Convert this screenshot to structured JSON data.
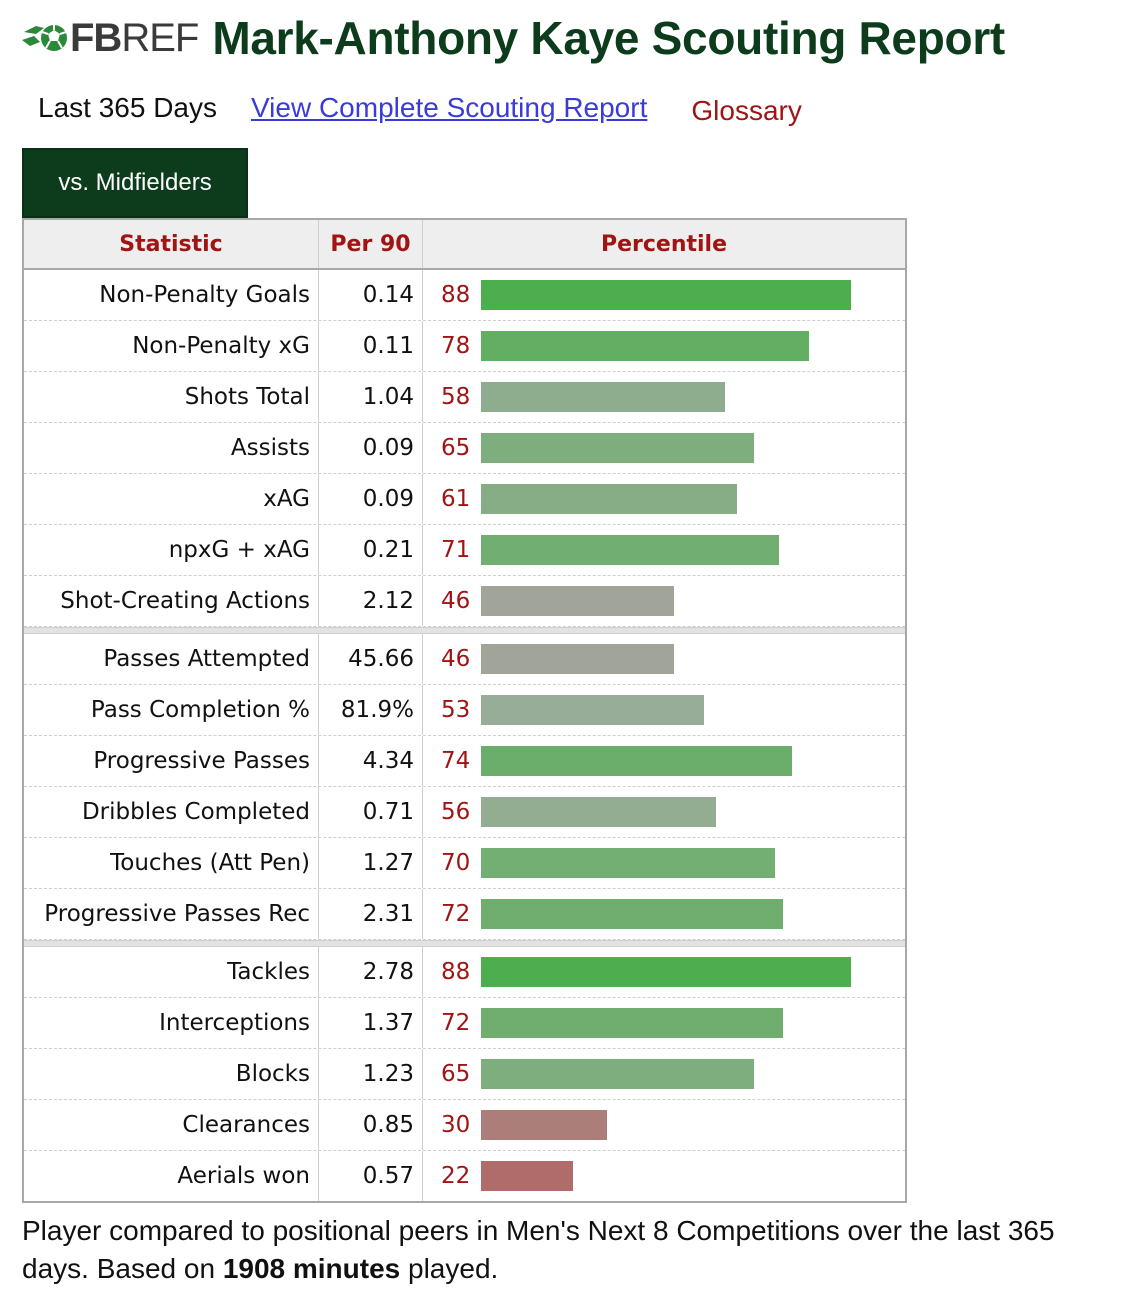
{
  "header": {
    "logo_icon": "soccer-ball-icon",
    "logo_bold": "FB",
    "logo_regular": "REF",
    "title": "Mark-Anthony Kaye Scouting Report"
  },
  "subnav": {
    "period": "Last 365 Days",
    "report_link": "View Complete Scouting Report",
    "glossary": "Glossary"
  },
  "tab": {
    "label": "vs. Midfielders"
  },
  "table": {
    "columns": [
      "Statistic",
      "Per 90",
      "Percentile"
    ],
    "groups": [
      [
        {
          "stat": "Non-Penalty Goals",
          "per90": "0.14",
          "percentile": 88
        },
        {
          "stat": "Non-Penalty xG",
          "per90": "0.11",
          "percentile": 78
        },
        {
          "stat": "Shots Total",
          "per90": "1.04",
          "percentile": 58
        },
        {
          "stat": "Assists",
          "per90": "0.09",
          "percentile": 65
        },
        {
          "stat": "xAG",
          "per90": "0.09",
          "percentile": 61
        },
        {
          "stat": "npxG + xAG",
          "per90": "0.21",
          "percentile": 71
        },
        {
          "stat": "Shot-Creating Actions",
          "per90": "2.12",
          "percentile": 46
        }
      ],
      [
        {
          "stat": "Passes Attempted",
          "per90": "45.66",
          "percentile": 46
        },
        {
          "stat": "Pass Completion %",
          "per90": "81.9%",
          "percentile": 53
        },
        {
          "stat": "Progressive Passes",
          "per90": "4.34",
          "percentile": 74
        },
        {
          "stat": "Dribbles Completed",
          "per90": "0.71",
          "percentile": 56
        },
        {
          "stat": "Touches (Att Pen)",
          "per90": "1.27",
          "percentile": 70
        },
        {
          "stat": "Progressive Passes Rec",
          "per90": "2.31",
          "percentile": 72
        }
      ],
      [
        {
          "stat": "Tackles",
          "per90": "2.78",
          "percentile": 88
        },
        {
          "stat": "Interceptions",
          "per90": "1.37",
          "percentile": 72
        },
        {
          "stat": "Blocks",
          "per90": "1.23",
          "percentile": 65
        },
        {
          "stat": "Clearances",
          "per90": "0.85",
          "percentile": 30
        },
        {
          "stat": "Aerials won",
          "per90": "0.57",
          "percentile": 22
        }
      ]
    ],
    "colors": {
      "high": "#4cae4c",
      "mid": "#9fad9f",
      "low": "#b06b6b"
    }
  },
  "footer": {
    "text_before": "Player compared to positional peers in Men's Next 8 Competitions over the last 365 days. Based on ",
    "minutes_bold": "1908 minutes",
    "text_after": " played."
  }
}
